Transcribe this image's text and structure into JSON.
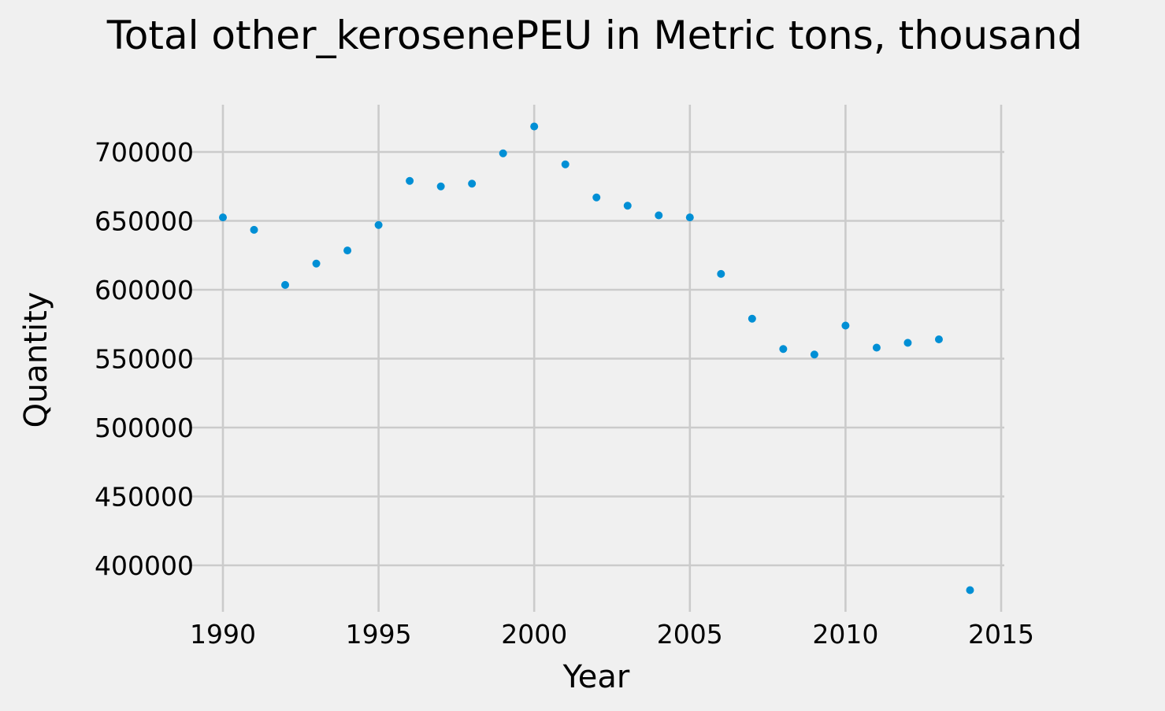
{
  "chart_data": {
    "type": "scatter",
    "title": "Total other_kerosenePEU in Metric tons,  thousand",
    "xlabel": "Year",
    "ylabel": "Quantity",
    "xlim": [
      1989,
      2015
    ],
    "ylim": [
      370000,
      720000
    ],
    "x_ticks": [
      1990,
      1995,
      2000,
      2005,
      2010,
      2015
    ],
    "x_tick_labels": [
      "1990",
      "1995",
      "2000",
      "2005",
      "2010",
      "2015"
    ],
    "y_ticks": [
      400000,
      450000,
      500000,
      550000,
      600000,
      650000,
      700000
    ],
    "y_tick_labels": [
      "400000",
      "450000",
      "500000",
      "550000",
      "600000",
      "650000",
      "700000"
    ],
    "grid": true,
    "legend": "none",
    "series": [
      {
        "color": "#008fd5",
        "x": [
          1990,
          1991,
          1992,
          1993,
          1994,
          1995,
          1996,
          1997,
          1998,
          1999,
          2000,
          2001,
          2002,
          2003,
          2004,
          2005,
          2006,
          2007,
          2008,
          2009,
          2010,
          2011,
          2012,
          2013,
          2014
        ],
        "y": [
          652500,
          643500,
          603500,
          619000,
          628500,
          647000,
          679000,
          675000,
          677000,
          699000,
          718500,
          691000,
          667000,
          661000,
          654000,
          652500,
          611500,
          579000,
          557000,
          553000,
          574000,
          558000,
          561500,
          564000,
          382000
        ]
      }
    ]
  },
  "colors": {
    "background": "#f0f0f0",
    "grid": "#cbcbcb",
    "marker": "#008fd5",
    "text": "#000000"
  }
}
